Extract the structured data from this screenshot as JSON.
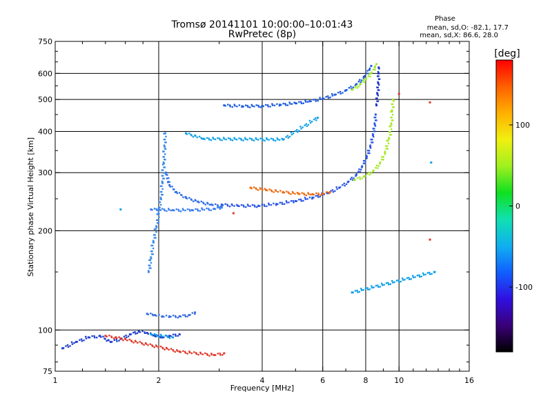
{
  "chart_data": {
    "type": "scatter",
    "title": "Tromsø 20141101 10:00:00–10:01:43",
    "subtitle": "RwPretec (8p)",
    "xlabel": "Frequency [MHz]",
    "ylabel": "Stationary phase Virtual Height [km]",
    "x_scale": "log2",
    "y_scale": "log",
    "xlim": [
      1,
      16
    ],
    "ylim": [
      75,
      750
    ],
    "x_ticks": [
      1,
      2,
      4,
      6,
      8,
      10,
      16
    ],
    "y_ticks": [
      75,
      100,
      200,
      300,
      400,
      500,
      600,
      750
    ],
    "x_grid": [
      2,
      4,
      6,
      8,
      10
    ],
    "y_grid": [
      100,
      200,
      300,
      400,
      500,
      600
    ],
    "phase_box": {
      "heading": "Phase",
      "line_o": "mean, sd,O: -82.1, 17.7",
      "line_x": "mean, sd,X:  86.6, 28.0"
    },
    "colorbar": {
      "label": "[deg]",
      "min": -180,
      "max": 180,
      "ticks": [
        -100,
        0,
        100
      ],
      "colors": [
        "#000000",
        "#3a0078",
        "#3010e0",
        "#1060ff",
        "#10b0f0",
        "#10e0b0",
        "#10e020",
        "#a0f020",
        "#f0f010",
        "#ffb000",
        "#ff6000",
        "#ff0000"
      ]
    },
    "series": [
      {
        "color": "#2a55e8",
        "phase": -90,
        "points": [
          [
            3.05,
            240
          ],
          [
            3.4,
            238
          ],
          [
            3.9,
            238
          ],
          [
            4.4,
            241
          ],
          [
            5.0,
            246
          ],
          [
            5.6,
            252
          ],
          [
            6.2,
            260
          ],
          [
            6.7,
            270
          ],
          [
            7.1,
            281
          ],
          [
            7.5,
            295
          ],
          [
            7.8,
            312
          ],
          [
            8.05,
            335
          ],
          [
            8.25,
            360
          ],
          [
            8.4,
            390
          ],
          [
            8.5,
            420
          ],
          [
            8.55,
            450
          ]
        ]
      },
      {
        "color": "#1a35c8",
        "phase": -105,
        "points": [
          [
            8.6,
            480
          ],
          [
            8.65,
            520
          ],
          [
            8.7,
            560
          ],
          [
            8.72,
            600
          ],
          [
            8.73,
            625
          ]
        ]
      },
      {
        "color": "#2e6fe6",
        "phase": -95,
        "points": [
          [
            2.1,
            300
          ],
          [
            2.15,
            275
          ],
          [
            2.25,
            262
          ],
          [
            2.4,
            252
          ],
          [
            2.6,
            245
          ],
          [
            2.85,
            240
          ],
          [
            3.05,
            238
          ]
        ]
      },
      {
        "color": "#3a7ef0",
        "phase": -90,
        "points": [
          [
            1.9,
            232
          ],
          [
            2.0,
            232
          ],
          [
            2.2,
            231
          ],
          [
            2.5,
            231
          ],
          [
            2.9,
            233
          ],
          [
            3.05,
            235
          ]
        ]
      },
      {
        "color": "#3a8ae8",
        "phase": -88,
        "points": [
          [
            1.87,
            150
          ],
          [
            1.9,
            165
          ],
          [
            1.93,
            185
          ],
          [
            1.97,
            205
          ],
          [
            2.0,
            225
          ],
          [
            2.03,
            250
          ],
          [
            2.05,
            280
          ],
          [
            2.07,
            320
          ],
          [
            2.08,
            360
          ],
          [
            2.09,
            395
          ]
        ]
      },
      {
        "color": "#1f5ce0",
        "phase": -98,
        "points": [
          [
            3.1,
            480
          ],
          [
            3.5,
            477
          ],
          [
            4.0,
            478
          ],
          [
            4.5,
            482
          ],
          [
            5.0,
            487
          ],
          [
            5.5,
            494
          ],
          [
            6.0,
            503
          ],
          [
            6.5,
            517
          ],
          [
            7.0,
            533
          ],
          [
            7.5,
            555
          ],
          [
            7.9,
            585
          ],
          [
            8.2,
            615
          ],
          [
            8.3,
            632
          ]
        ]
      },
      {
        "color": "#a0e830",
        "phase": 60,
        "points": [
          [
            7.3,
            535
          ],
          [
            7.7,
            555
          ],
          [
            8.0,
            575
          ],
          [
            8.3,
            600
          ],
          [
            8.5,
            625
          ],
          [
            8.6,
            640
          ]
        ]
      },
      {
        "color": "#a8e82a",
        "phase": 65,
        "points": [
          [
            7.4,
            285
          ],
          [
            7.9,
            292
          ],
          [
            8.4,
            303
          ],
          [
            8.8,
            320
          ],
          [
            9.1,
            345
          ],
          [
            9.35,
            380
          ],
          [
            9.5,
            420
          ],
          [
            9.55,
            460
          ],
          [
            9.6,
            500
          ]
        ]
      },
      {
        "color": "#ee6a10",
        "phase": 135,
        "points": [
          [
            3.7,
            270
          ],
          [
            4.1,
            266
          ],
          [
            4.6,
            262
          ],
          [
            5.1,
            259
          ],
          [
            5.6,
            258
          ],
          [
            6.0,
            259
          ],
          [
            6.3,
            262
          ]
        ]
      },
      {
        "color": "#3a6fe0",
        "phase": -92,
        "points": [
          [
            1.85,
            112
          ],
          [
            1.95,
            111
          ],
          [
            2.05,
            110
          ],
          [
            2.15,
            110
          ],
          [
            2.3,
            110
          ],
          [
            2.45,
            111
          ],
          [
            2.55,
            113
          ]
        ]
      },
      {
        "color": "#2040d0",
        "phase": -100,
        "points": [
          [
            1.05,
            88
          ],
          [
            1.15,
            92
          ],
          [
            1.25,
            95
          ],
          [
            1.35,
            96
          ],
          [
            1.45,
            92
          ],
          [
            1.55,
            94
          ],
          [
            1.65,
            97
          ],
          [
            1.75,
            99
          ],
          [
            1.85,
            98
          ],
          [
            1.95,
            96
          ],
          [
            2.05,
            95
          ],
          [
            2.15,
            96
          ],
          [
            2.3,
            97
          ]
        ]
      },
      {
        "color": "#e03a2a",
        "phase": 150,
        "points": [
          [
            1.4,
            96
          ],
          [
            1.5,
            95
          ],
          [
            2.3,
            86
          ],
          [
            2.9,
            84
          ],
          [
            3.1,
            85
          ],
          [
            12.3,
            490
          ],
          [
            12.3,
            188
          ],
          [
            10.0,
            520
          ],
          [
            3.3,
            226
          ]
        ]
      },
      {
        "color": "#10a0e8",
        "phase": -60,
        "points": [
          [
            1.55,
            232
          ],
          [
            2.4,
            395
          ],
          [
            2.7,
            380
          ],
          [
            4.6,
            378
          ],
          [
            5.8,
            440
          ],
          [
            7.3,
            130
          ],
          [
            12.7,
            150
          ],
          [
            12.4,
            322
          ],
          [
            1.9,
            97
          ],
          [
            2.2,
            95
          ]
        ]
      }
    ]
  }
}
